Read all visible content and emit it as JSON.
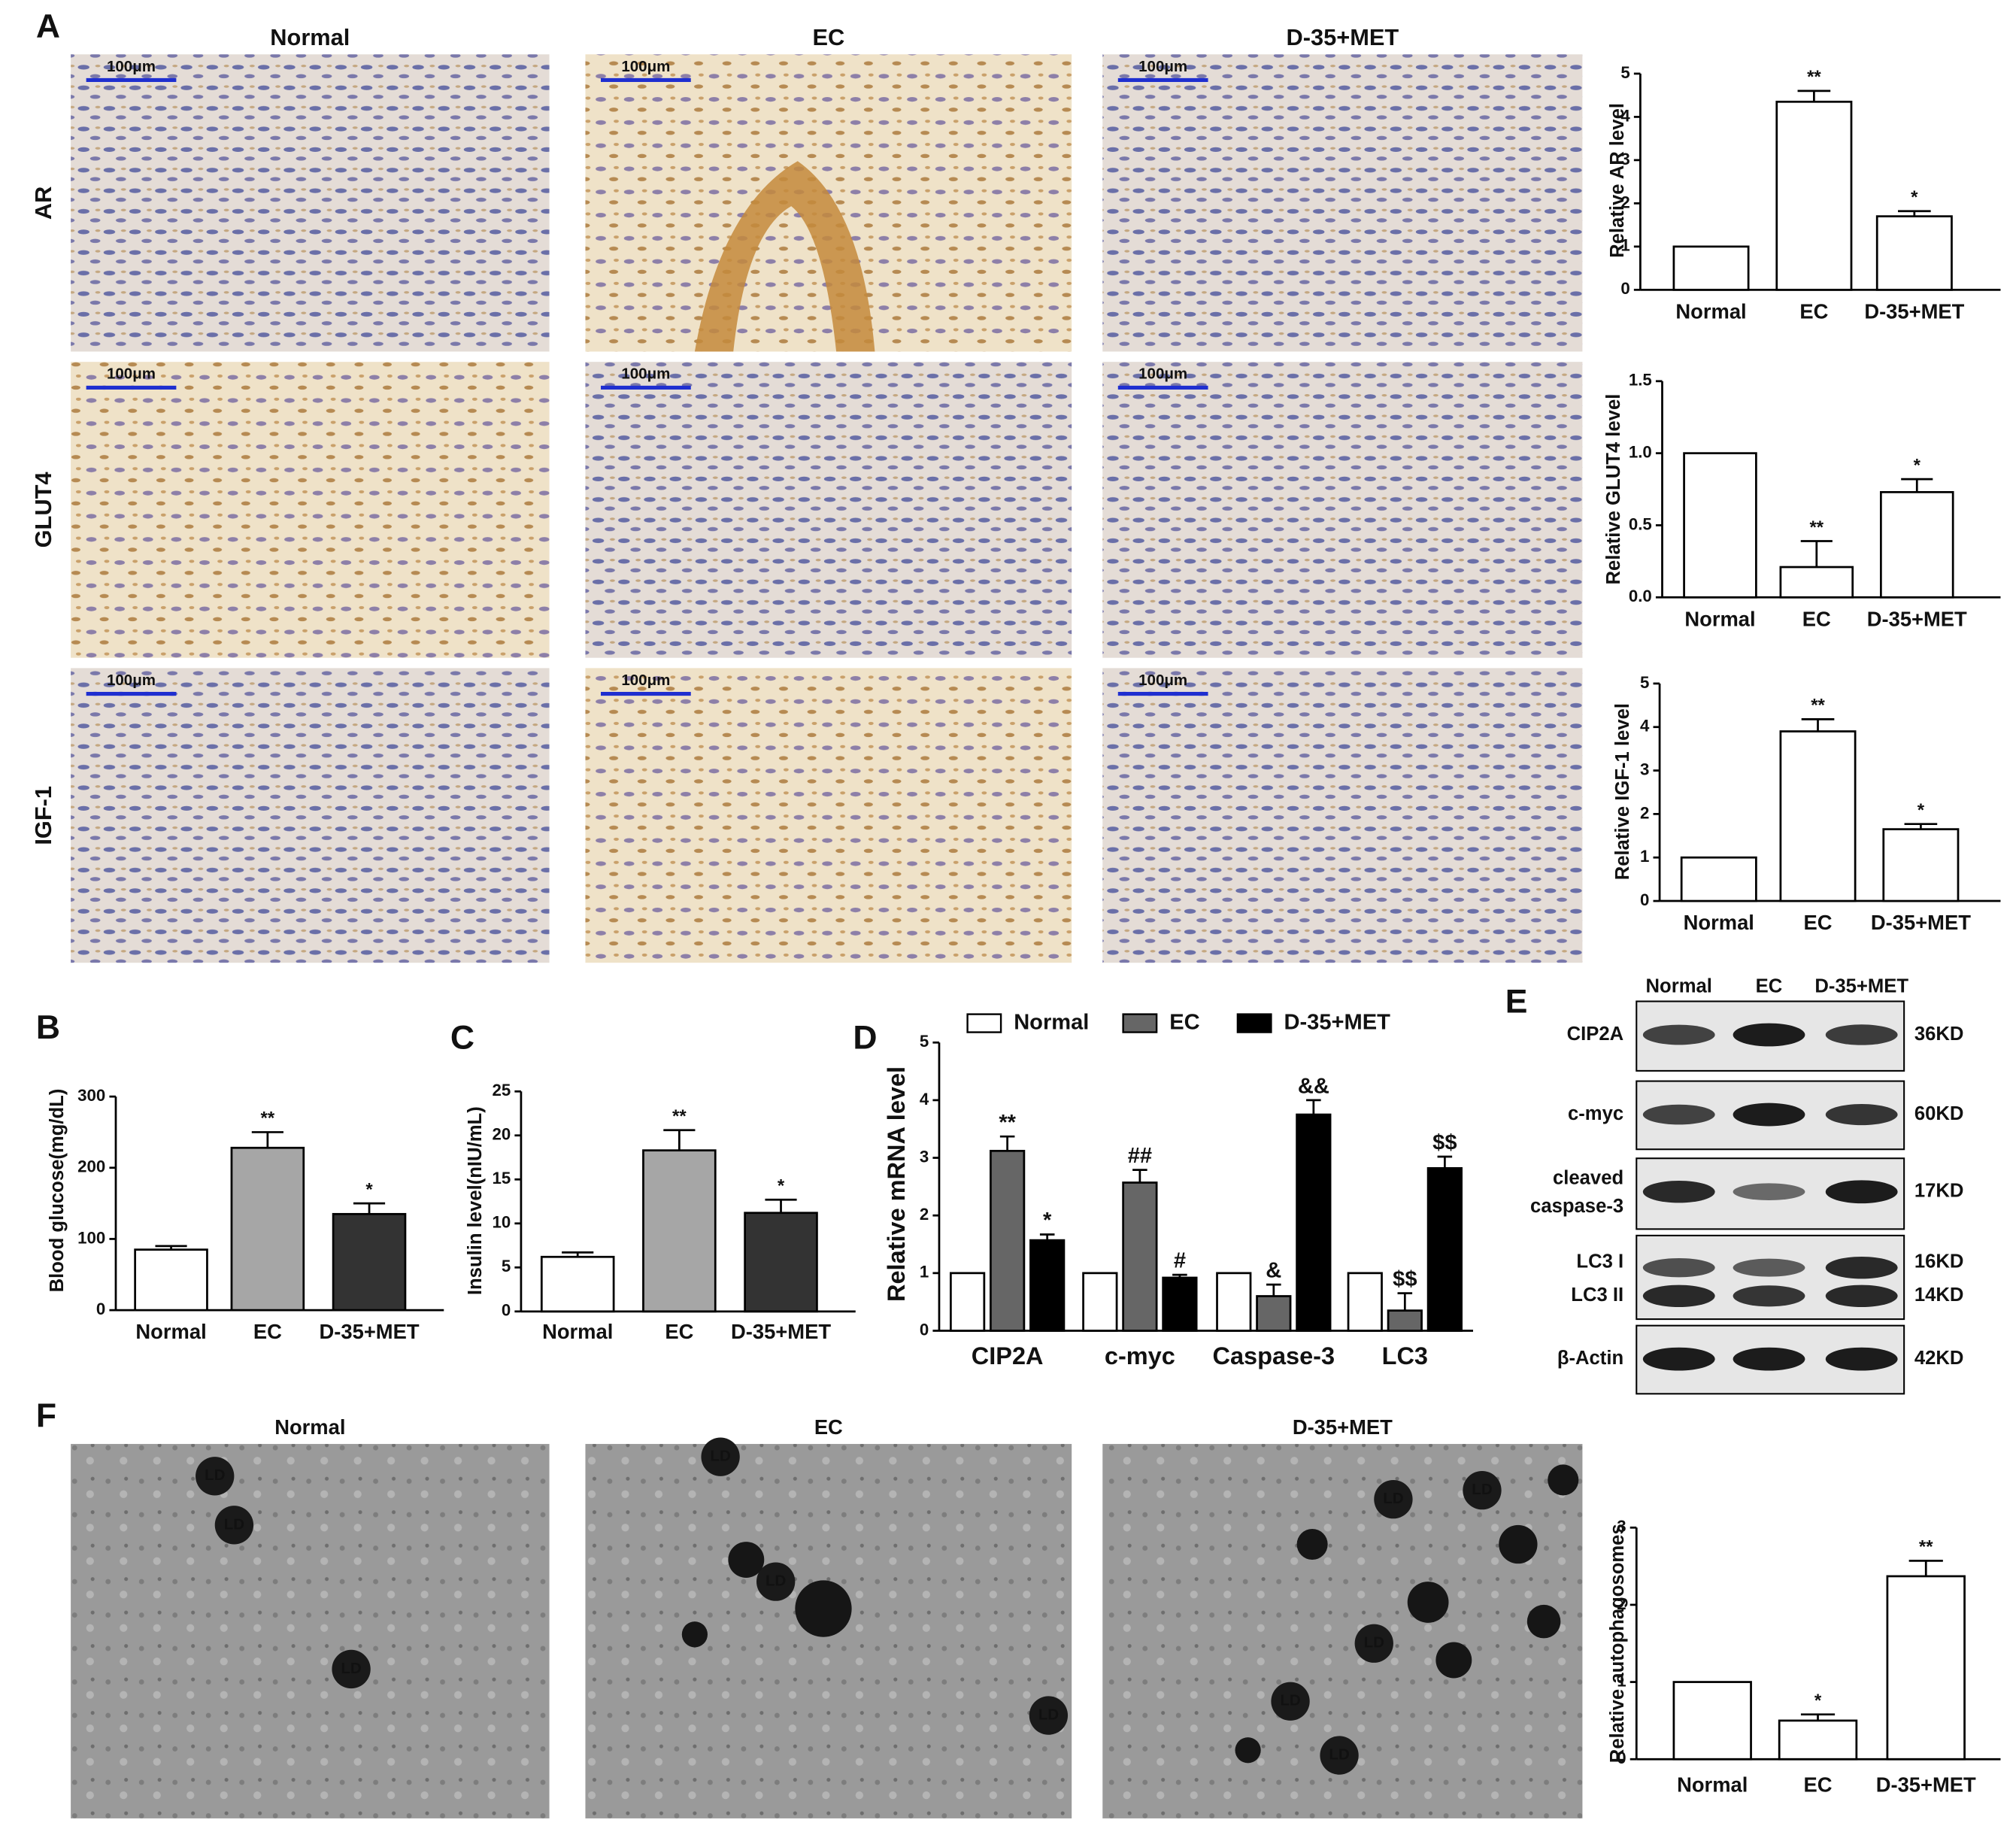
{
  "figure": {
    "panel_labels": [
      "A",
      "B",
      "C",
      "D",
      "E",
      "F"
    ],
    "ihc": {
      "columns": [
        "Normal",
        "EC",
        "D-35+MET"
      ],
      "rows": [
        "AR",
        "GLUT4",
        "IGF-1"
      ],
      "scale_bar": "100μm"
    },
    "western": {
      "columns": [
        "Normal",
        "EC",
        "D-35+MET"
      ],
      "rows": [
        {
          "label": [
            "CIP2A"
          ],
          "size": "36KD"
        },
        {
          "label": [
            "c-myc"
          ],
          "size": "60KD"
        },
        {
          "label": [
            "cleaved",
            "caspase-3"
          ],
          "size": "17KD"
        },
        {
          "label": [
            "LC3 I"
          ],
          "size": "16KD"
        },
        {
          "label": [
            "LC3 II"
          ],
          "size": "14KD"
        },
        {
          "label": [
            "β-Actin"
          ],
          "size": "42KD"
        }
      ]
    },
    "tem": {
      "columns": [
        "Normal",
        "EC",
        "D-35+MET"
      ],
      "ld_label": "LD"
    }
  },
  "chart_data": [
    {
      "type": "bar",
      "ylabel": "Relative AR level",
      "categories": [
        "Normal",
        "EC",
        "D-35+MET"
      ],
      "values": [
        1,
        4.35,
        1.7
      ],
      "errors": [
        0,
        0.25,
        0.12
      ],
      "markers": [
        null,
        "**",
        "*"
      ],
      "colors": [
        "#ffffff",
        "#ffffff",
        "#ffffff"
      ],
      "ylim": [
        0,
        5
      ],
      "yticks": [
        0,
        1,
        2,
        3,
        4,
        5
      ]
    },
    {
      "type": "bar",
      "ylabel": "Relative GLUT4 level",
      "categories": [
        "Normal",
        "EC",
        "D-35+MET"
      ],
      "values": [
        1,
        0.21,
        0.73
      ],
      "errors": [
        0,
        0.18,
        0.09
      ],
      "markers": [
        null,
        "**",
        "*"
      ],
      "colors": [
        "#ffffff",
        "#ffffff",
        "#ffffff"
      ],
      "ylim": [
        0,
        1.5
      ],
      "yticks": [
        {
          "value": 0,
          "label": "0.0"
        },
        {
          "value": 0.5,
          "label": "0.5"
        },
        {
          "value": 1,
          "label": "1.0"
        },
        {
          "value": 1.5,
          "label": "1.5"
        }
      ]
    },
    {
      "type": "bar",
      "ylabel": "Relative IGF-1 level",
      "categories": [
        "Normal",
        "EC",
        "D-35+MET"
      ],
      "values": [
        1,
        3.9,
        1.65
      ],
      "errors": [
        0,
        0.28,
        0.12
      ],
      "markers": [
        null,
        "**",
        "*"
      ],
      "colors": [
        "#ffffff",
        "#ffffff",
        "#ffffff"
      ],
      "ylim": [
        0,
        5
      ],
      "yticks": [
        0,
        1,
        2,
        3,
        4,
        5
      ]
    },
    {
      "type": "bar",
      "ylabel": "Blood glucose(mg/dL)",
      "categories": [
        "Normal",
        "EC",
        "D-35+MET"
      ],
      "values": [
        85,
        228,
        135
      ],
      "errors": [
        5,
        22,
        15
      ],
      "markers": [
        null,
        "**",
        "*"
      ],
      "colors": [
        "#ffffff",
        "#a6a6a6",
        "#333333"
      ],
      "ylim": [
        0,
        300
      ],
      "yticks": [
        0,
        100,
        200,
        300
      ]
    },
    {
      "type": "bar",
      "ylabel": "Insulin level(nIU/mL)",
      "categories": [
        "Normal",
        "EC",
        "D-35+MET"
      ],
      "values": [
        6.2,
        18.3,
        11.2
      ],
      "errors": [
        0.5,
        2.3,
        1.5
      ],
      "markers": [
        null,
        "**",
        "*"
      ],
      "colors": [
        "#ffffff",
        "#a6a6a6",
        "#333333"
      ],
      "ylim": [
        0,
        25
      ],
      "yticks": [
        0,
        5,
        10,
        15,
        20,
        25
      ]
    },
    {
      "type": "bar",
      "ylabel": "Relative mRNA  level",
      "categories": [
        "CIP2A",
        "c-myc",
        "Caspase-3",
        "LC3"
      ],
      "series": [
        {
          "name": "Normal",
          "color": "#ffffff",
          "values": [
            1,
            1,
            1,
            1
          ],
          "errors": [
            0,
            0,
            0,
            0
          ],
          "markers": [
            null,
            null,
            null,
            null
          ]
        },
        {
          "name": "EC",
          "color": "#666666",
          "values": [
            3.12,
            2.57,
            0.6,
            0.35
          ],
          "errors": [
            0.25,
            0.22,
            0.2,
            0.3
          ],
          "markers": [
            "**",
            "##",
            "&",
            "$$"
          ]
        },
        {
          "name": "D-35+MET",
          "color": "#000000",
          "values": [
            1.57,
            0.92,
            3.75,
            2.82
          ],
          "errors": [
            0.1,
            0.05,
            0.25,
            0.2
          ],
          "markers": [
            "*",
            "#",
            "&&",
            "$$"
          ]
        }
      ],
      "ylim": [
        0,
        5
      ],
      "yticks": [
        0,
        1,
        2,
        3,
        4,
        5
      ],
      "legend": "top"
    },
    {
      "type": "bar",
      "ylabel": "Relative autophagosomes",
      "categories": [
        "Normal",
        "EC",
        "D-35+MET"
      ],
      "values": [
        1,
        0.5,
        2.37
      ],
      "errors": [
        0,
        0.08,
        0.2
      ],
      "markers": [
        null,
        "*",
        "**"
      ],
      "colors": [
        "#ffffff",
        "#ffffff",
        "#ffffff"
      ],
      "ylim": [
        0,
        3
      ],
      "yticks": [
        0,
        1,
        2,
        3
      ]
    }
  ]
}
